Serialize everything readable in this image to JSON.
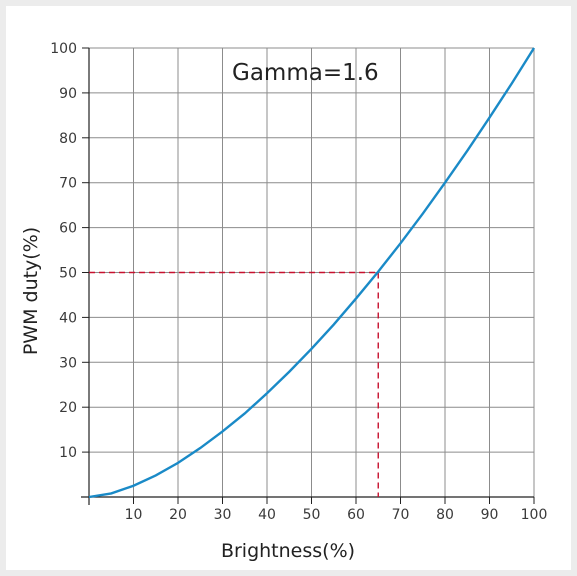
{
  "chart_data": {
    "type": "line",
    "annotation": "Gamma=1.6",
    "xlabel": "Brightness(%)",
    "ylabel": "PWM duty(%)",
    "xlim": [
      0,
      100
    ],
    "ylim": [
      0,
      100
    ],
    "x_ticks": [
      10,
      20,
      30,
      40,
      50,
      60,
      70,
      80,
      90,
      100
    ],
    "y_ticks": [
      10,
      20,
      30,
      40,
      50,
      60,
      70,
      80,
      90,
      100
    ],
    "grid": true,
    "series": [
      {
        "color": "#1a8ac7",
        "points": [
          [
            0,
            0
          ],
          [
            5,
            0.8
          ],
          [
            10,
            2.5
          ],
          [
            15,
            4.8
          ],
          [
            20,
            7.6
          ],
          [
            25,
            10.9
          ],
          [
            30,
            14.6
          ],
          [
            35,
            18.6
          ],
          [
            40,
            23.1
          ],
          [
            45,
            27.9
          ],
          [
            50,
            33.0
          ],
          [
            55,
            38.4
          ],
          [
            60,
            44.2
          ],
          [
            65,
            50.2
          ],
          [
            70,
            56.5
          ],
          [
            75,
            63.1
          ],
          [
            80,
            70.0
          ],
          [
            85,
            77.1
          ],
          [
            90,
            84.5
          ],
          [
            95,
            92.1
          ],
          [
            100,
            100
          ]
        ]
      }
    ],
    "reference": {
      "x": 65,
      "y": 50,
      "color": "#c8102e"
    }
  }
}
